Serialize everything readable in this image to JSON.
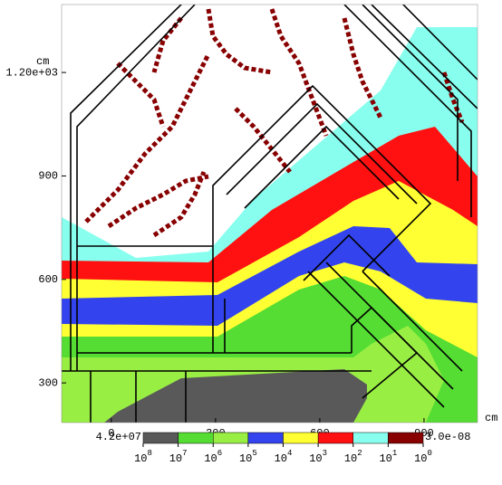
{
  "chart_data": {
    "type": "heatmap",
    "x_unit": "cm",
    "y_unit": "cm",
    "xlim": [
      -143,
      1054
    ],
    "ylim": [
      185,
      1397
    ],
    "xticks": [
      0,
      300,
      600,
      900
    ],
    "yticks": [
      300,
      600,
      900,
      {
        "value": 1200,
        "label": "1.20e+03"
      }
    ],
    "colorbar": {
      "min_label": "4.2e+07",
      "max_label": "3.0e-08",
      "ticks": [
        {
          "value": 100000000,
          "label": "10",
          "exponent": "8"
        },
        {
          "value": 10000000,
          "label": "10",
          "exponent": "7"
        },
        {
          "value": 1000000,
          "label": "10",
          "exponent": "6"
        },
        {
          "value": 100000,
          "label": "10",
          "exponent": "5"
        },
        {
          "value": 10000,
          "label": "10",
          "exponent": "4"
        },
        {
          "value": 1000,
          "label": "10",
          "exponent": "3"
        },
        {
          "value": 100,
          "label": "10",
          "exponent": "2"
        },
        {
          "value": 10,
          "label": "10",
          "exponent": "1"
        },
        {
          "value": 1,
          "label": "10",
          "exponent": "0"
        }
      ],
      "colors": [
        "#595959",
        "#55dd33",
        "#99ee44",
        "#3344ee",
        "#ffff33",
        "#ff1111",
        "#88ffee",
        "#880000"
      ]
    }
  }
}
